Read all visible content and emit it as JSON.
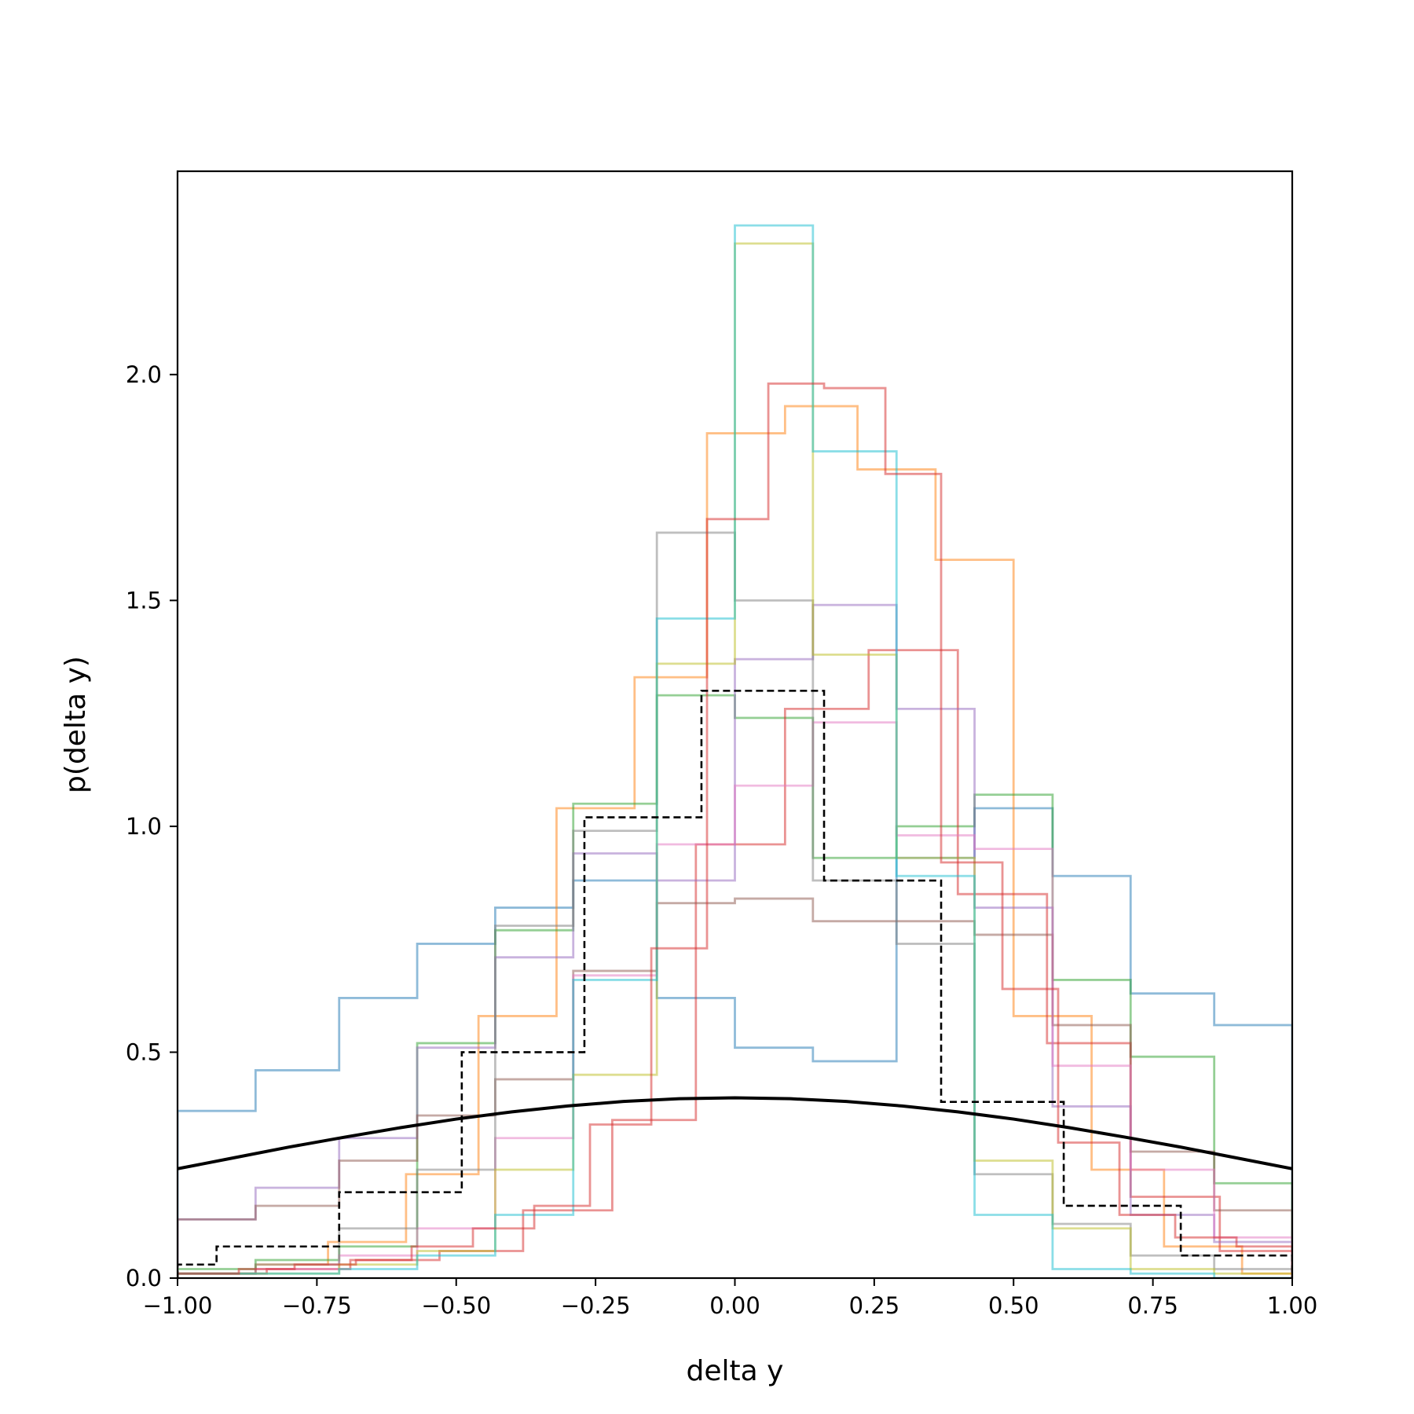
{
  "chart_data": {
    "type": "histogram-step",
    "xlabel": "delta y",
    "ylabel": "p(delta y)",
    "xlim": [
      -1.0,
      1.0
    ],
    "ylim": [
      0.0,
      2.45
    ],
    "xticks": [
      -1.0,
      -0.75,
      -0.5,
      -0.25,
      0.0,
      0.25,
      0.5,
      0.75,
      1.0
    ],
    "xtick_labels": [
      "−1.00",
      "−0.75",
      "−0.50",
      "−0.25",
      "0.00",
      "0.25",
      "0.50",
      "0.75",
      "1.00"
    ],
    "yticks": [
      0.0,
      0.5,
      1.0,
      1.5,
      2.0
    ],
    "ytick_labels": [
      "0.0",
      "0.5",
      "1.0",
      "1.5",
      "2.0"
    ],
    "grid": false,
    "series": [
      {
        "color": "#1f77b4",
        "opacity": 0.5,
        "x": [
          -1.0,
          -0.86,
          -0.71,
          -0.57,
          -0.43,
          -0.29,
          -0.14,
          0.0,
          0.14,
          0.29,
          0.43,
          0.57,
          0.71,
          0.86,
          1.0
        ],
        "y": [
          0.37,
          0.46,
          0.62,
          0.74,
          0.82,
          0.88,
          0.62,
          0.51,
          0.48,
          0.93,
          1.04,
          0.89,
          0.63,
          0.56,
          0.18
        ]
      },
      {
        "color": "#ff7f0e",
        "opacity": 0.5,
        "x": [
          -1.0,
          -0.86,
          -0.73,
          -0.59,
          -0.46,
          -0.32,
          -0.18,
          -0.05,
          0.09,
          0.22,
          0.36,
          0.5,
          0.64,
          0.77,
          0.91,
          1.0
        ],
        "y": [
          0.01,
          0.03,
          0.08,
          0.23,
          0.58,
          1.04,
          1.33,
          1.87,
          1.93,
          1.79,
          1.59,
          0.58,
          0.24,
          0.07,
          0.01,
          0.0
        ]
      },
      {
        "color": "#2ca02c",
        "opacity": 0.5,
        "x": [
          -1.0,
          -0.86,
          -0.71,
          -0.57,
          -0.43,
          -0.29,
          -0.14,
          0.0,
          0.14,
          0.29,
          0.43,
          0.57,
          0.71,
          0.86,
          1.0
        ],
        "y": [
          0.02,
          0.04,
          0.07,
          0.52,
          0.77,
          1.05,
          1.29,
          1.24,
          0.93,
          1.0,
          1.07,
          0.66,
          0.49,
          0.21,
          0.04
        ]
      },
      {
        "color": "#d62728",
        "opacity": 0.5,
        "x": [
          -1.0,
          -0.84,
          -0.69,
          -0.53,
          -0.38,
          -0.22,
          -0.07,
          0.09,
          0.24,
          0.4,
          0.56,
          0.71,
          0.87,
          1.0
        ],
        "y": [
          0.01,
          0.02,
          0.04,
          0.06,
          0.15,
          0.35,
          0.96,
          1.26,
          1.39,
          0.85,
          0.52,
          0.18,
          0.06,
          0.02
        ]
      },
      {
        "color": "#9467bd",
        "opacity": 0.5,
        "x": [
          -1.0,
          -0.86,
          -0.71,
          -0.57,
          -0.43,
          -0.29,
          -0.14,
          0.0,
          0.14,
          0.29,
          0.43,
          0.57,
          0.71,
          0.86,
          1.0
        ],
        "y": [
          0.13,
          0.2,
          0.31,
          0.51,
          0.71,
          0.94,
          0.88,
          1.37,
          1.49,
          1.26,
          0.82,
          0.38,
          0.14,
          0.08,
          0.03
        ]
      },
      {
        "color": "#8c564b",
        "opacity": 0.5,
        "x": [
          -1.0,
          -0.86,
          -0.71,
          -0.57,
          -0.43,
          -0.29,
          -0.14,
          0.0,
          0.14,
          0.29,
          0.43,
          0.57,
          0.71,
          0.86,
          1.0
        ],
        "y": [
          0.13,
          0.16,
          0.26,
          0.36,
          0.44,
          0.68,
          0.83,
          0.84,
          0.79,
          0.79,
          0.76,
          0.56,
          0.28,
          0.15,
          0.09
        ]
      },
      {
        "color": "#e377c2",
        "opacity": 0.5,
        "x": [
          -1.0,
          -0.86,
          -0.71,
          -0.57,
          -0.43,
          -0.29,
          -0.14,
          0.0,
          0.14,
          0.29,
          0.43,
          0.57,
          0.71,
          0.86,
          1.0
        ],
        "y": [
          0.01,
          0.02,
          0.05,
          0.11,
          0.31,
          0.67,
          0.96,
          1.09,
          1.23,
          0.98,
          0.95,
          0.47,
          0.24,
          0.09,
          0.03
        ]
      },
      {
        "color": "#7f7f7f",
        "opacity": 0.5,
        "x": [
          -1.0,
          -0.86,
          -0.71,
          -0.57,
          -0.43,
          -0.29,
          -0.14,
          0.0,
          0.14,
          0.29,
          0.43,
          0.57,
          0.71,
          0.86,
          1.0
        ],
        "y": [
          0.01,
          0.03,
          0.11,
          0.24,
          0.78,
          0.99,
          1.65,
          1.5,
          0.88,
          0.74,
          0.23,
          0.12,
          0.05,
          0.02,
          0.01
        ]
      },
      {
        "color": "#bcbd22",
        "opacity": 0.5,
        "x": [
          -1.0,
          -0.86,
          -0.71,
          -0.57,
          -0.43,
          -0.29,
          -0.14,
          0.0,
          0.14,
          0.29,
          0.43,
          0.57,
          0.71,
          0.86,
          1.0
        ],
        "y": [
          0.01,
          0.01,
          0.03,
          0.06,
          0.24,
          0.45,
          1.36,
          2.29,
          1.38,
          0.93,
          0.26,
          0.11,
          0.02,
          0.01,
          0.0
        ]
      },
      {
        "color": "#17becf",
        "opacity": 0.5,
        "x": [
          -1.0,
          -0.86,
          -0.71,
          -0.57,
          -0.43,
          -0.29,
          -0.14,
          0.0,
          0.14,
          0.29,
          0.43,
          0.57,
          0.71,
          0.86,
          1.0
        ],
        "y": [
          0.01,
          0.01,
          0.02,
          0.05,
          0.14,
          0.66,
          1.46,
          2.33,
          1.83,
          0.89,
          0.14,
          0.02,
          0.01,
          0.0,
          0.0
        ]
      },
      {
        "color": "#d62728",
        "opacity": 0.5,
        "x": [
          -1.0,
          -0.89,
          -0.79,
          -0.68,
          -0.58,
          -0.47,
          -0.36,
          -0.26,
          -0.15,
          -0.05,
          0.06,
          0.16,
          0.27,
          0.37,
          0.48,
          0.58,
          0.69,
          0.79,
          0.9,
          1.0
        ],
        "y": [
          0.01,
          0.02,
          0.03,
          0.04,
          0.07,
          0.11,
          0.16,
          0.34,
          0.73,
          1.68,
          1.98,
          1.97,
          1.78,
          0.92,
          0.64,
          0.3,
          0.14,
          0.09,
          0.07,
          0.03
        ]
      },
      {
        "color": "#000000",
        "opacity": 1.0,
        "dashed": true,
        "x": [
          -1.0,
          -0.93,
          -0.71,
          -0.49,
          -0.27,
          -0.06,
          0.16,
          0.37,
          0.59,
          0.8,
          1.0
        ],
        "y": [
          0.03,
          0.07,
          0.19,
          0.5,
          1.02,
          1.3,
          0.88,
          0.39,
          0.16,
          0.05,
          0.05
        ]
      }
    ],
    "curve": {
      "name": "",
      "color": "#000000",
      "x": [
        -1.0,
        -0.9,
        -0.8,
        -0.7,
        -0.6,
        -0.5,
        -0.4,
        -0.3,
        -0.2,
        -0.1,
        0.0,
        0.1,
        0.2,
        0.3,
        0.4,
        0.5,
        0.6,
        0.7,
        0.8,
        0.9,
        1.0
      ],
      "y": [
        0.242,
        0.266,
        0.29,
        0.312,
        0.333,
        0.352,
        0.368,
        0.381,
        0.391,
        0.397,
        0.399,
        0.397,
        0.391,
        0.381,
        0.368,
        0.352,
        0.333,
        0.312,
        0.29,
        0.266,
        0.242
      ]
    }
  }
}
